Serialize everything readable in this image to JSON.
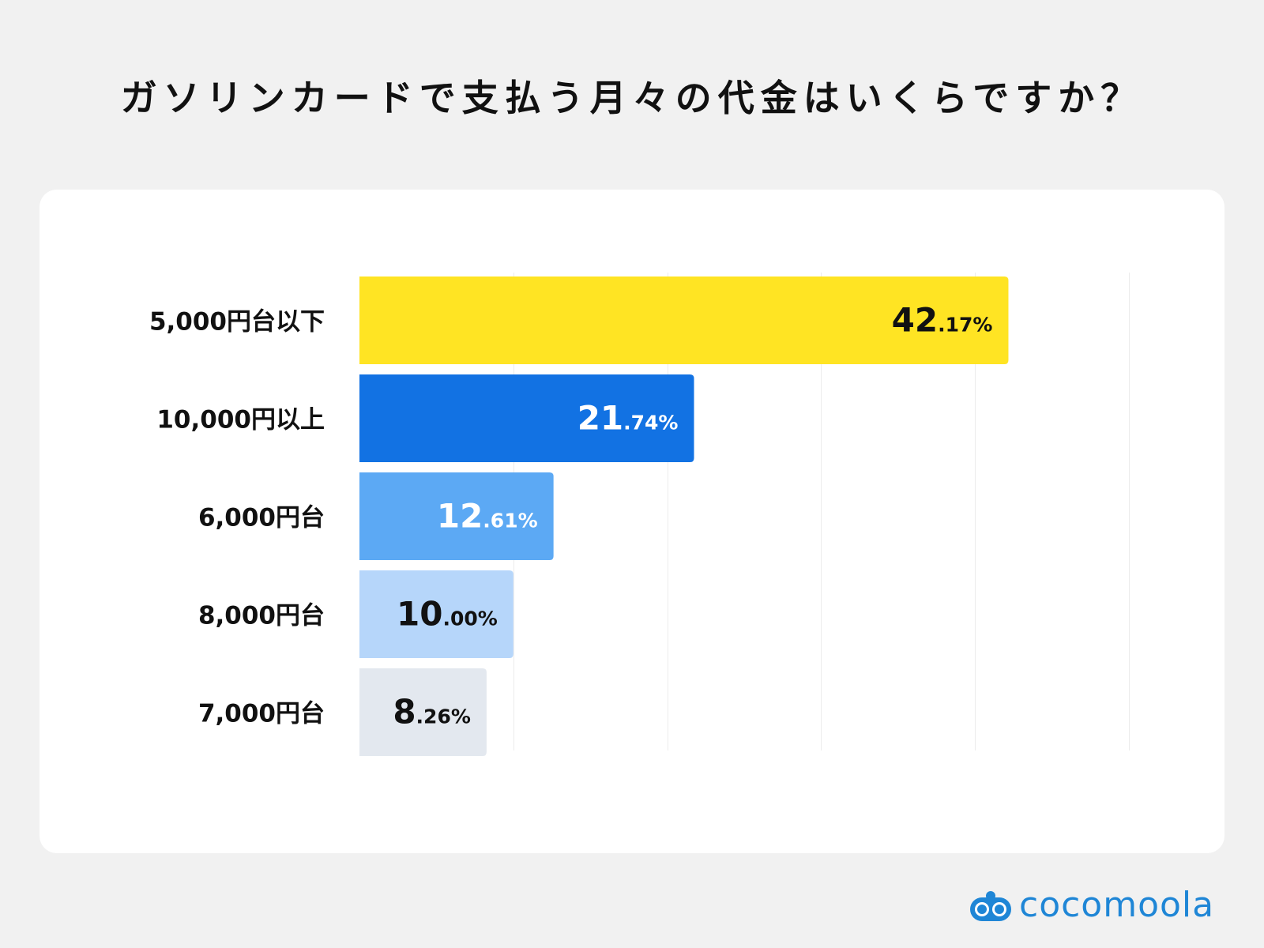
{
  "chart_data": {
    "type": "bar",
    "orientation": "horizontal",
    "title": "ガソリンカードで支払う月々の代金はいくらですか？",
    "xlim": [
      0,
      50
    ],
    "grid": true,
    "categories": [
      "5,000円台以下",
      "10,000円以上",
      "6,000円台",
      "8,000円台",
      "7,000円台"
    ],
    "values": [
      42.17,
      21.74,
      12.61,
      10.0,
      8.26
    ],
    "labels_int": [
      "42",
      "21",
      "12",
      "10",
      "8"
    ],
    "labels_dec": [
      ".17%",
      ".74%",
      ".61%",
      ".00%",
      ".26%"
    ],
    "colors": [
      "#FFE423",
      "#1272E3",
      "#5CA9F4",
      "#B6D6FA",
      "#E3E8EF"
    ],
    "label_colors": [
      "#111111",
      "#FFFFFF",
      "#FFFFFF",
      "#111111",
      "#111111"
    ]
  },
  "brand": {
    "name": "cocomoola",
    "icon": "cocomoola-logo-icon",
    "color": "#1F86D6"
  }
}
